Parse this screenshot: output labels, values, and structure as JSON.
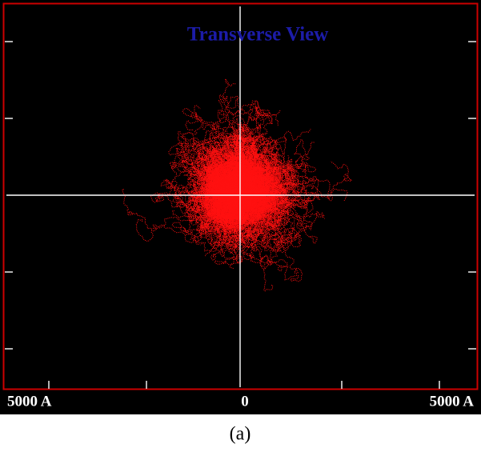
{
  "plot": {
    "title": "Transverse View",
    "axis_labels": [
      "5000 A",
      "0",
      "5000 A"
    ]
  },
  "caption": "(a)"
}
